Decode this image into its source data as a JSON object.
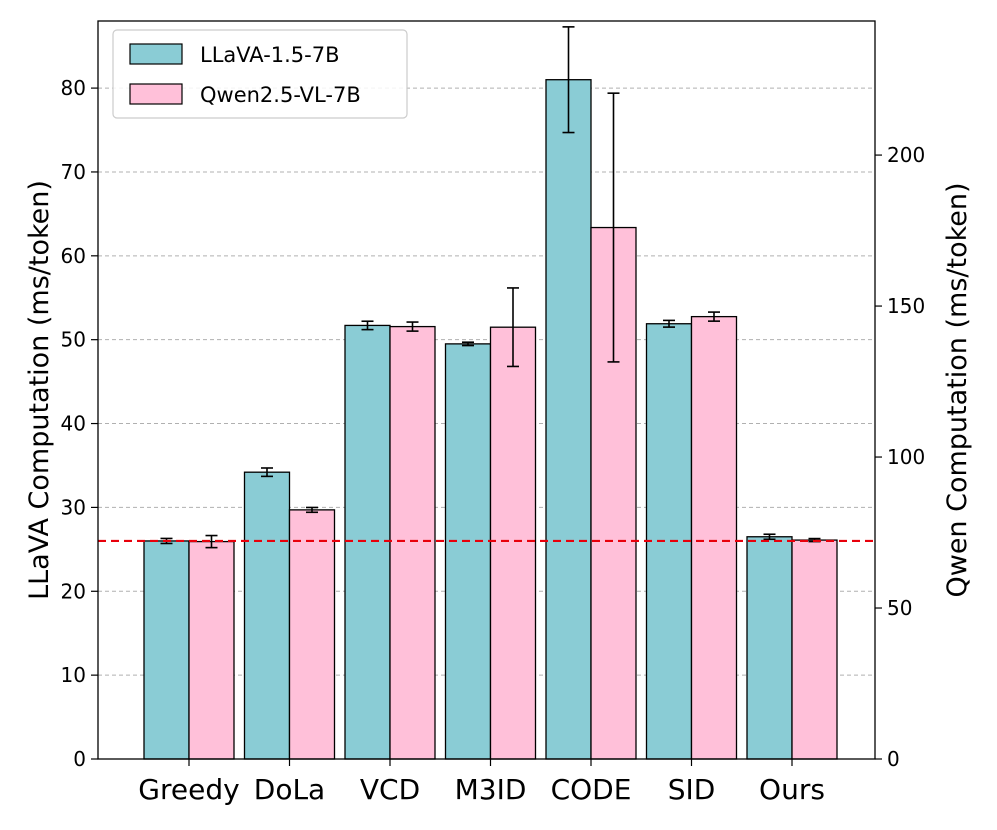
{
  "chart_data": {
    "type": "bar",
    "categories": [
      "Greedy",
      "DoLa",
      "VCD",
      "M3ID",
      "CODE",
      "SID",
      "Ours"
    ],
    "series": [
      {
        "name": "LLaVA-1.5-7B",
        "axis": "left",
        "color": "#8ACCD5",
        "values": [
          26.0,
          34.2,
          51.7,
          49.5,
          81.0,
          51.9,
          26.5
        ],
        "errors": [
          0.3,
          0.5,
          0.5,
          0.2,
          6.3,
          0.4,
          0.3
        ]
      },
      {
        "name": "Qwen2.5-VL-7B",
        "axis": "right",
        "color": "#FFC0D9",
        "values": [
          72.0,
          82.5,
          143.2,
          143.0,
          176.0,
          146.5,
          72.5
        ],
        "errors": [
          2.0,
          0.8,
          1.5,
          13.0,
          44.5,
          1.5,
          0.5
        ]
      }
    ],
    "ylabel_left": "LLaVA Computation (ms/token)",
    "ylabel_right": "Qwen Computation (ms/token)",
    "ylim_left": [
      0,
      88
    ],
    "ylim_right": [
      0,
      244.4
    ],
    "yticks_left": [
      0,
      10,
      20,
      30,
      40,
      50,
      60,
      70,
      80
    ],
    "yticks_right": [
      0,
      50,
      100,
      150,
      200
    ],
    "reference_line": {
      "value": 26.0,
      "axis": "left",
      "color": "#E8000B",
      "style": "dashed"
    },
    "grid": "horizontal-dashed",
    "legend_position": "top-left"
  }
}
